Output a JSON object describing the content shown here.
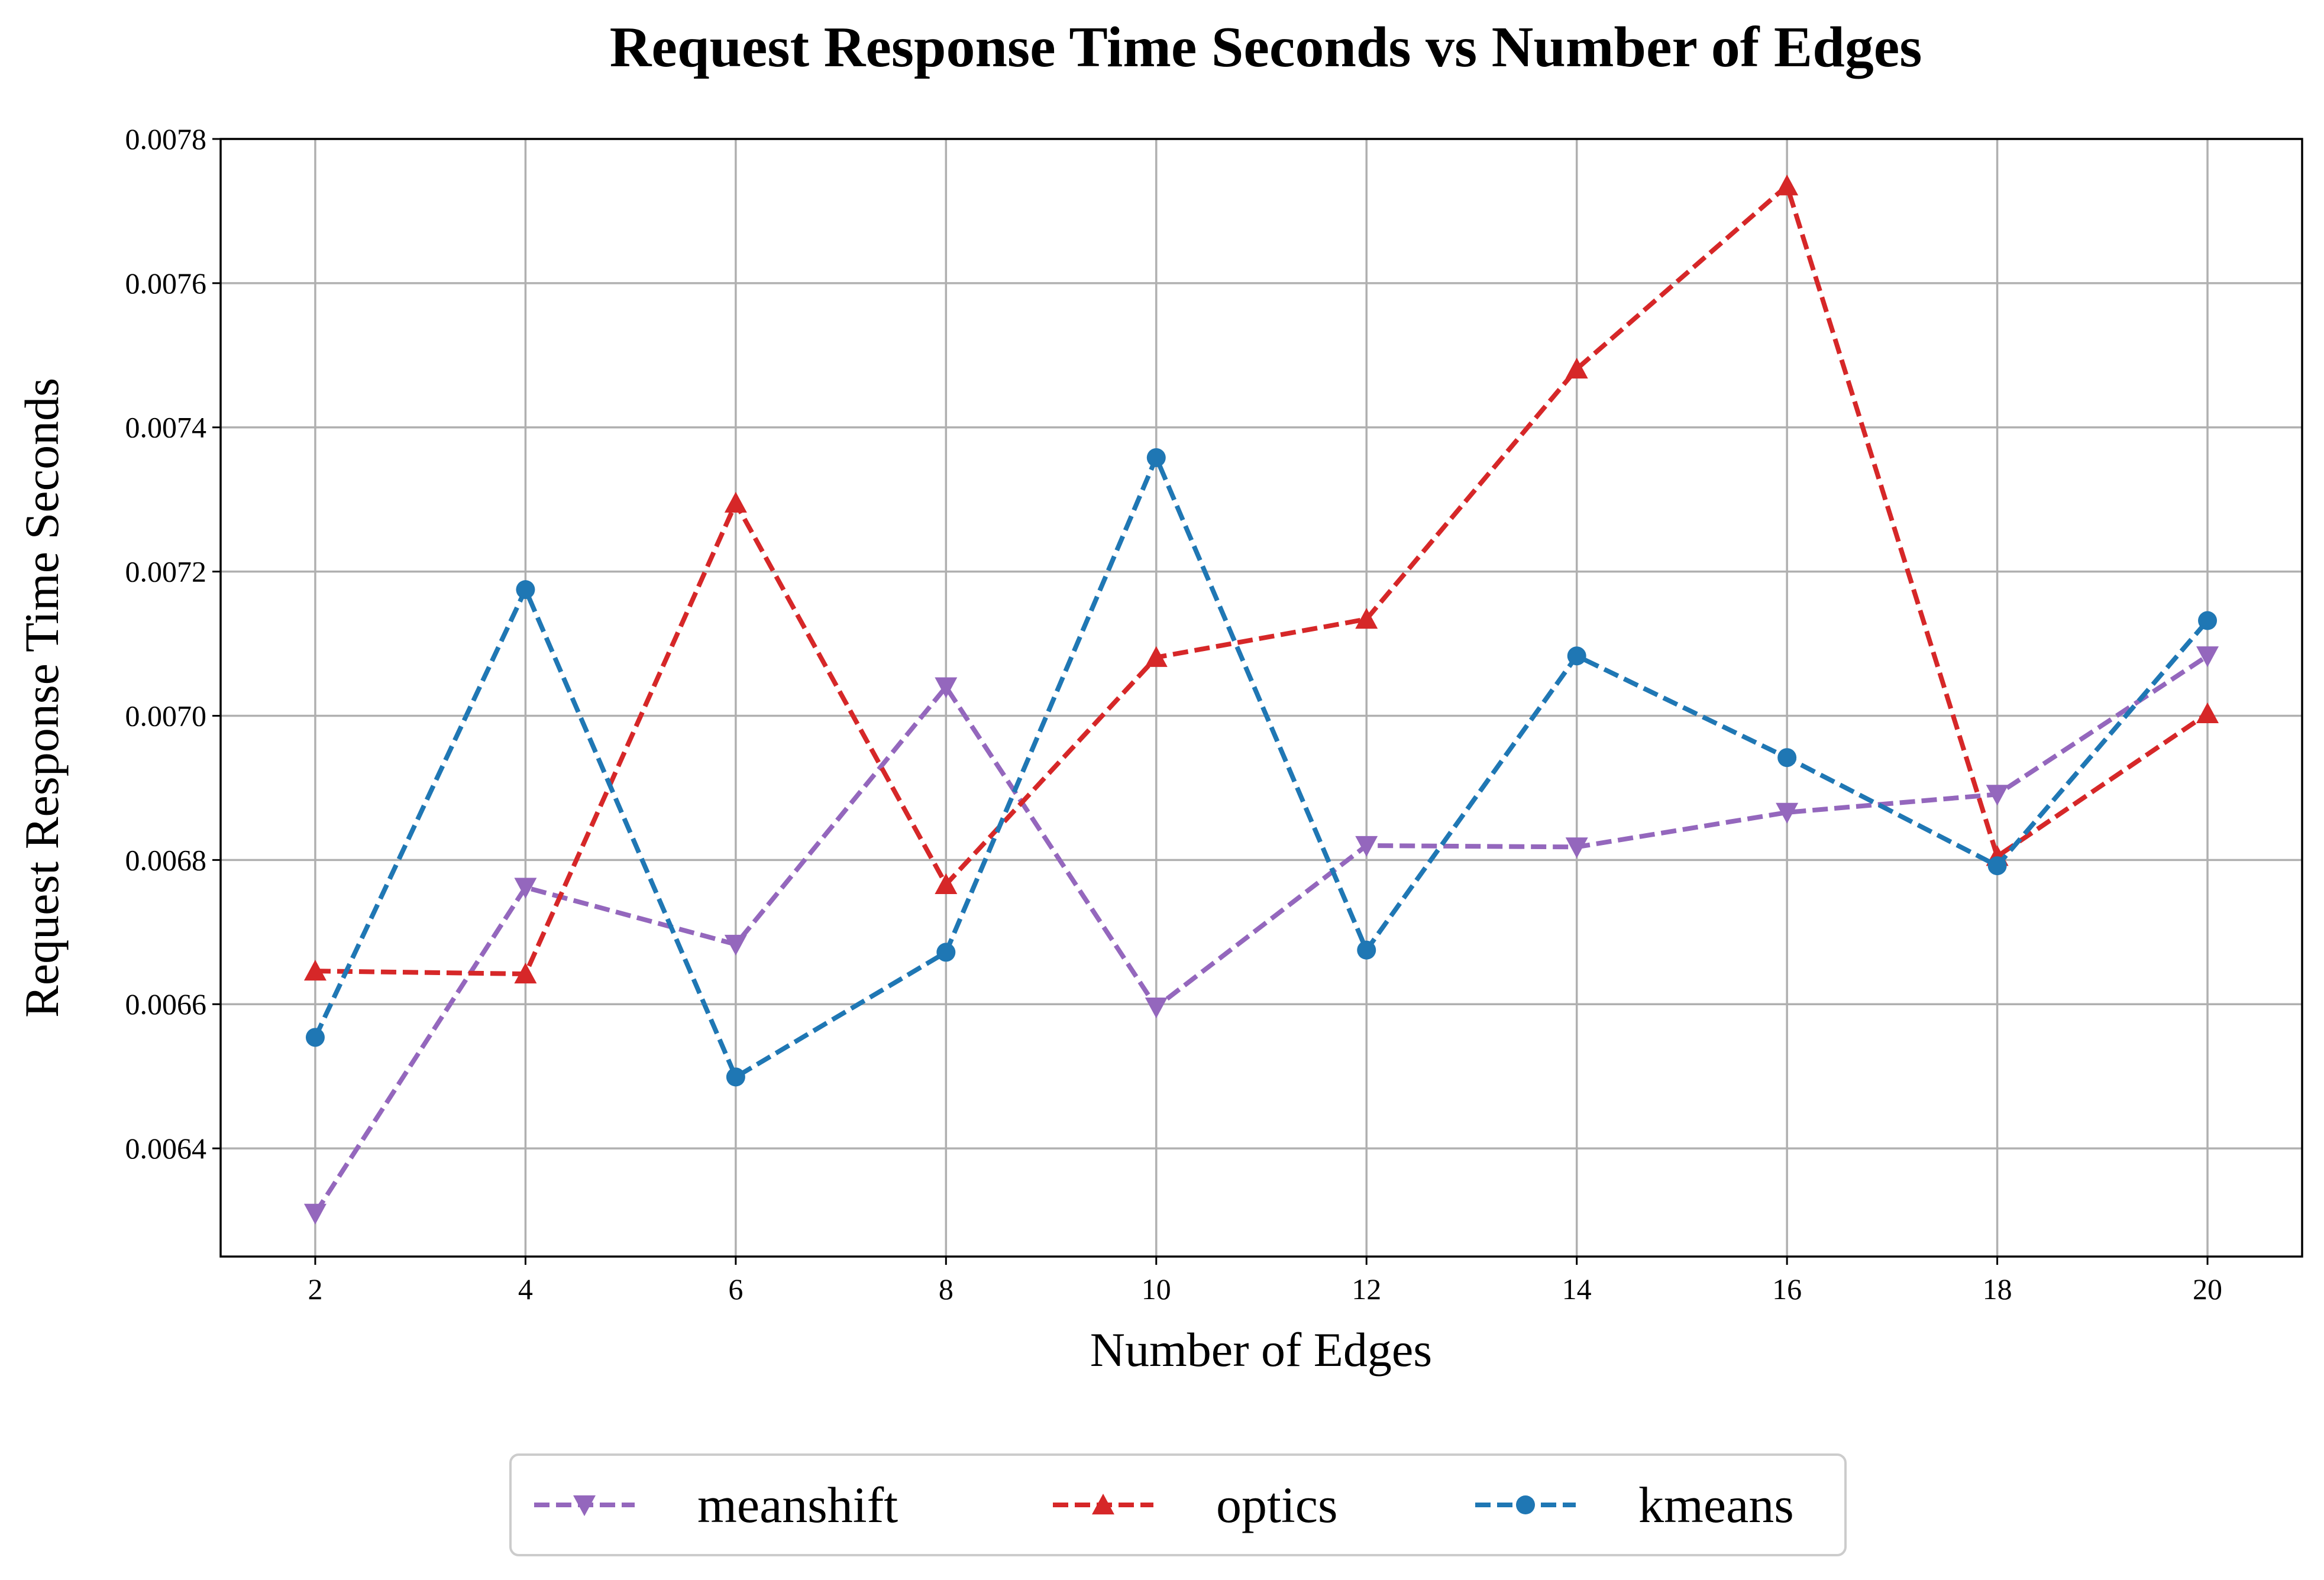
{
  "chart_data": {
    "type": "line",
    "title": "Request Response Time Seconds vs Number of Edges",
    "xlabel": "Number of Edges",
    "ylabel": "Request Response Time Seconds",
    "x": [
      2,
      4,
      6,
      8,
      10,
      12,
      14,
      16,
      18,
      20
    ],
    "xticks": [
      "2",
      "4",
      "6",
      "8",
      "10",
      "12",
      "14",
      "16",
      "18",
      "20"
    ],
    "yticks": [
      "0.0064",
      "0.0066",
      "0.0068",
      "0.0070",
      "0.0072",
      "0.0074",
      "0.0076",
      "0.0078"
    ],
    "xlim": [
      1.1,
      20.9
    ],
    "ylim": [
      0.00625,
      0.0078
    ],
    "grid": true,
    "legend_position": "bottom-center",
    "series": [
      {
        "name": "meanshift",
        "color": "#9467bd",
        "marker": "triangle-down",
        "line_style": "dashed",
        "values": [
          0.00631,
          0.006762,
          0.006683,
          0.00704,
          0.006596,
          0.00682,
          0.006818,
          0.006866,
          0.006891,
          0.007083
        ]
      },
      {
        "name": "optics",
        "color": "#d62728",
        "marker": "triangle-up",
        "line_style": "dashed",
        "values": [
          0.006646,
          0.006642,
          0.007295,
          0.006766,
          0.007081,
          0.007134,
          0.007481,
          0.007735,
          0.006805,
          0.007003
        ]
      },
      {
        "name": "kmeans",
        "color": "#1f77b4",
        "marker": "circle",
        "line_style": "dashed",
        "values": [
          0.006554,
          0.007175,
          0.006499,
          0.006672,
          0.007358,
          0.006675,
          0.007083,
          0.006942,
          0.006792,
          0.007132
        ]
      }
    ]
  }
}
